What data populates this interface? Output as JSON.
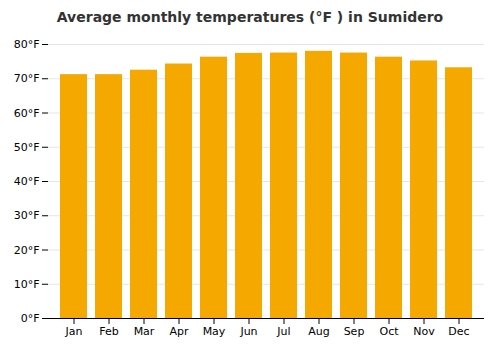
{
  "chart_data": {
    "type": "bar",
    "title": "Average monthly temperatures (°F ) in Sumidero",
    "categories": [
      "Jan",
      "Feb",
      "Mar",
      "Apr",
      "May",
      "Jun",
      "Jul",
      "Aug",
      "Sep",
      "Oct",
      "Nov",
      "Dec"
    ],
    "values": [
      71.2,
      71.2,
      72.5,
      74.3,
      76.3,
      77.4,
      77.5,
      78.0,
      77.5,
      76.3,
      75.2,
      73.2
    ],
    "color": "#F5A800",
    "ylim": [
      0,
      80
    ],
    "yticks": [
      {
        "value": 0,
        "label": "0°F"
      },
      {
        "value": 10,
        "label": "10°F"
      },
      {
        "value": 20,
        "label": "20°F"
      },
      {
        "value": 30,
        "label": "30°F"
      },
      {
        "value": 40,
        "label": "40°F"
      },
      {
        "value": 50,
        "label": "50°F"
      },
      {
        "value": 60,
        "label": "60°F"
      },
      {
        "value": 70,
        "label": "70°F"
      },
      {
        "value": 80,
        "label": "80°F"
      }
    ],
    "grid": true
  }
}
